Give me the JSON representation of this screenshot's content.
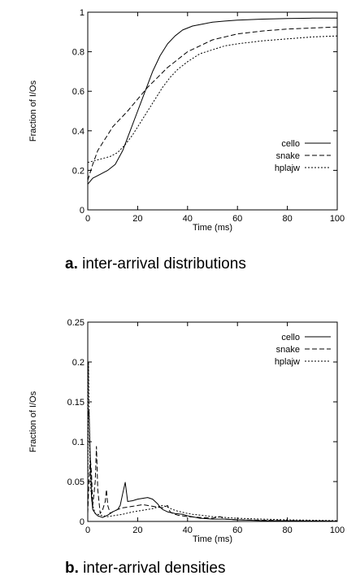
{
  "chart_data": [
    {
      "type": "line",
      "caption_label": "a.",
      "caption_text": " inter-arrival distributions",
      "xlabel": "Time (ms)",
      "ylabel": "Fraction of I/Os",
      "xlim": [
        0,
        100
      ],
      "ylim": [
        0,
        1
      ],
      "xticks": [
        0,
        20,
        40,
        60,
        80,
        100
      ],
      "yticks": [
        0,
        0.2,
        0.4,
        0.6,
        0.8,
        1
      ],
      "ytick_labels": [
        "0",
        "0.2",
        "0.4",
        "0.6",
        "0.8",
        "1"
      ],
      "legend_position": "bottom-right",
      "series": [
        {
          "name": "cello",
          "dash": "solid",
          "x": [
            0,
            2,
            5,
            8,
            11,
            14,
            17,
            20,
            23,
            26,
            29,
            32,
            35,
            38,
            42,
            46,
            50,
            55,
            60,
            70,
            80,
            90,
            100
          ],
          "y": [
            0.13,
            0.16,
            0.18,
            0.2,
            0.23,
            0.3,
            0.4,
            0.5,
            0.6,
            0.7,
            0.78,
            0.84,
            0.88,
            0.91,
            0.93,
            0.94,
            0.95,
            0.955,
            0.96,
            0.965,
            0.968,
            0.97,
            0.97
          ]
        },
        {
          "name": "snake",
          "dash": "dashed",
          "x": [
            0,
            2,
            4,
            6,
            8,
            10,
            13,
            16,
            20,
            24,
            28,
            32,
            36,
            40,
            45,
            50,
            60,
            70,
            80,
            90,
            100
          ],
          "y": [
            0.15,
            0.23,
            0.3,
            0.34,
            0.38,
            0.42,
            0.46,
            0.5,
            0.56,
            0.62,
            0.67,
            0.72,
            0.76,
            0.8,
            0.83,
            0.86,
            0.89,
            0.905,
            0.915,
            0.92,
            0.925
          ]
        },
        {
          "name": "hplajw",
          "dash": "dotted",
          "x": [
            0,
            3,
            6,
            9,
            12,
            15,
            18,
            21,
            24,
            27,
            30,
            33,
            36,
            40,
            45,
            50,
            55,
            60,
            70,
            80,
            90,
            100
          ],
          "y": [
            0.24,
            0.25,
            0.26,
            0.27,
            0.29,
            0.33,
            0.38,
            0.44,
            0.5,
            0.56,
            0.62,
            0.67,
            0.71,
            0.75,
            0.79,
            0.81,
            0.83,
            0.84,
            0.855,
            0.865,
            0.875,
            0.88
          ]
        }
      ]
    },
    {
      "type": "line",
      "caption_label": "b.",
      "caption_text": " inter-arrival densities",
      "xlabel": "Time (ms)",
      "ylabel": "Fraction of I/Os",
      "xlim": [
        0,
        100
      ],
      "ylim": [
        0,
        0.25
      ],
      "xticks": [
        0,
        20,
        40,
        60,
        80,
        100
      ],
      "yticks": [
        0,
        0.05,
        0.1,
        0.15,
        0.2,
        0.25
      ],
      "ytick_labels": [
        "0",
        "0.05",
        "0.1",
        "0.15",
        "0.2",
        "0.25"
      ],
      "legend_position": "top-right",
      "series": [
        {
          "name": "cello",
          "dash": "solid",
          "x": [
            0,
            0.5,
            1,
            1.5,
            2,
            3,
            4,
            6,
            8,
            10,
            12,
            13,
            14,
            15,
            16,
            18,
            20,
            22,
            24,
            26,
            27,
            28,
            29,
            30,
            32,
            35,
            38,
            40,
            45,
            50,
            55,
            60,
            70,
            80,
            90,
            100
          ],
          "y": [
            0.13,
            0.14,
            0.08,
            0.03,
            0.015,
            0.01,
            0.007,
            0.005,
            0.008,
            0.012,
            0.015,
            0.02,
            0.035,
            0.049,
            0.025,
            0.026,
            0.028,
            0.029,
            0.03,
            0.028,
            0.025,
            0.022,
            0.018,
            0.015,
            0.012,
            0.01,
            0.009,
            0.007,
            0.004,
            0.003,
            0.003,
            0.002,
            0.001,
            0.0008,
            0.0005,
            0.0003
          ]
        },
        {
          "name": "snake",
          "dash": "dashed",
          "x": [
            0,
            0.5,
            1,
            1.5,
            2,
            3,
            3.5,
            4,
            5,
            6,
            7,
            7.5,
            8,
            9,
            10,
            12,
            14,
            16,
            18,
            20,
            22,
            24,
            26,
            28,
            30,
            32,
            33,
            34,
            36,
            40,
            45,
            50,
            53,
            55,
            60,
            70,
            80,
            90,
            100
          ],
          "y": [
            0.01,
            0.05,
            0.08,
            0.06,
            0.02,
            0.05,
            0.094,
            0.04,
            0.01,
            0.015,
            0.025,
            0.04,
            0.02,
            0.01,
            0.012,
            0.015,
            0.017,
            0.018,
            0.019,
            0.02,
            0.021,
            0.02,
            0.019,
            0.018,
            0.017,
            0.02,
            0.012,
            0.01,
            0.008,
            0.006,
            0.005,
            0.004,
            0.006,
            0.003,
            0.002,
            0.0015,
            0.001,
            0.0008,
            0.0005
          ]
        },
        {
          "name": "hplajw",
          "dash": "dotted",
          "x": [
            0,
            0.3,
            0.7,
            1.2,
            2,
            3,
            5,
            8,
            10,
            14,
            18,
            22,
            26,
            28,
            30,
            32,
            34,
            36,
            40,
            42,
            45,
            50,
            55,
            60,
            70,
            80,
            90,
            100
          ],
          "y": [
            0.01,
            0.2,
            0.1,
            0.04,
            0.02,
            0.01,
            0.008,
            0.006,
            0.007,
            0.009,
            0.012,
            0.014,
            0.016,
            0.018,
            0.02,
            0.018,
            0.015,
            0.013,
            0.01,
            0.009,
            0.008,
            0.006,
            0.005,
            0.004,
            0.003,
            0.002,
            0.0015,
            0.001
          ]
        }
      ]
    }
  ]
}
